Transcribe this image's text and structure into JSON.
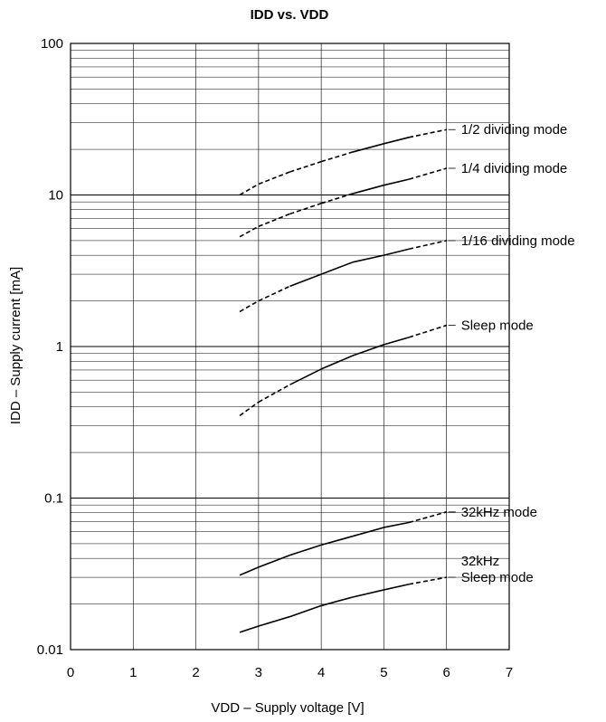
{
  "chart_data": {
    "type": "line",
    "title": "IDD vs. VDD",
    "xlabel": "VDD – Supply voltage [V]",
    "ylabel": "IDD – Supply current [mA]",
    "xlim": [
      0,
      7
    ],
    "ylim": [
      0.01,
      100
    ],
    "yscale": "log",
    "grid": true,
    "x_ticks": [
      "0",
      "1",
      "2",
      "3",
      "4",
      "5",
      "6",
      "7"
    ],
    "y_ticks": [
      "0.01",
      "0.1",
      "1",
      "10",
      "100"
    ],
    "series": [
      {
        "name": "1/2 dividing mode",
        "label_lines": [
          "1/2 dividing mode"
        ],
        "x": [
          2.7,
          3.0,
          3.5,
          4.0,
          4.5,
          5.0,
          5.4,
          6.0
        ],
        "y": [
          10,
          11.8,
          14.2,
          16.6,
          19.2,
          21.8,
          24,
          27
        ],
        "solid_range": [
          4.5,
          5.4
        ]
      },
      {
        "name": "1/4 dividing mode",
        "label_lines": [
          "1/4 dividing mode"
        ],
        "x": [
          2.7,
          3.0,
          3.5,
          4.0,
          4.5,
          5.0,
          5.4,
          6.0
        ],
        "y": [
          5.3,
          6.2,
          7.5,
          8.8,
          10.2,
          11.6,
          12.7,
          15
        ],
        "solid_range": [
          4.5,
          5.4
        ]
      },
      {
        "name": "1/16 dividing mode",
        "label_lines": [
          "1/16 dividing mode"
        ],
        "x": [
          2.7,
          3.0,
          3.5,
          4.0,
          4.5,
          5.0,
          5.4,
          6.0
        ],
        "y": [
          1.7,
          2.0,
          2.5,
          3.0,
          3.6,
          4.0,
          4.4,
          5.0
        ],
        "solid_range": [
          3.5,
          5.4
        ]
      },
      {
        "name": "Sleep mode",
        "label_lines": [
          "Sleep mode"
        ],
        "x": [
          2.7,
          3.0,
          3.5,
          4.0,
          4.5,
          5.0,
          5.4,
          6.0
        ],
        "y": [
          0.35,
          0.43,
          0.56,
          0.71,
          0.87,
          1.03,
          1.15,
          1.38
        ],
        "solid_range": [
          3.5,
          5.4
        ]
      },
      {
        "name": "32kHz mode",
        "label_lines": [
          "32kHz mode"
        ],
        "x": [
          2.7,
          3.0,
          3.5,
          4.0,
          4.5,
          5.0,
          5.4,
          6.0
        ],
        "y": [
          0.031,
          0.035,
          0.042,
          0.049,
          0.056,
          0.064,
          0.069,
          0.081
        ],
        "solid_range": [
          2.7,
          5.4
        ]
      },
      {
        "name": "32kHz Sleep mode",
        "label_lines": [
          "32kHz",
          "Sleep mode"
        ],
        "x": [
          2.7,
          3.0,
          3.5,
          4.0,
          4.5,
          5.0,
          5.4,
          6.0
        ],
        "y": [
          0.013,
          0.0143,
          0.0165,
          0.0195,
          0.0222,
          0.0248,
          0.027,
          0.03
        ],
        "solid_range": [
          2.7,
          5.4
        ]
      }
    ]
  }
}
